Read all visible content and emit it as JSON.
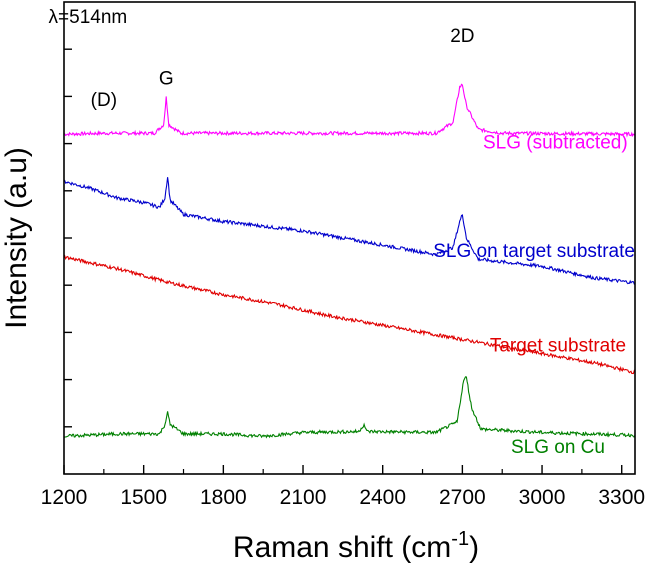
{
  "chart_data": {
    "type": "line",
    "title": "",
    "xlabel": "Raman shift (cm",
    "xlabel_sup": "-1",
    "xlabel_end": ")",
    "ylabel": "Intensity (a.u)",
    "xlim": [
      1200,
      3350
    ],
    "ylim": [
      0,
      10
    ],
    "xticks": [
      1200,
      1500,
      1800,
      2100,
      2400,
      2700,
      3000,
      3300
    ],
    "yticks": [
      1,
      2,
      3,
      4,
      5,
      6,
      7,
      8,
      9
    ],
    "annotations": [
      {
        "text": "λ=514nm",
        "x": 1290,
        "y": 9.55
      },
      {
        "text": "2D",
        "x": 2700,
        "y": 9.15
      },
      {
        "text": "G",
        "x": 1585,
        "y": 8.25
      },
      {
        "text": "(D)",
        "x": 1350,
        "y": 7.8
      }
    ],
    "series": [
      {
        "name": "SLG (subtracted)",
        "color": "#ff00ff",
        "label_x": 3050,
        "label_y": 6.9,
        "points": [
          [
            1200,
            7.2
          ],
          [
            1350,
            7.22
          ],
          [
            1540,
            7.22
          ],
          [
            1575,
            7.4
          ],
          [
            1585,
            7.98
          ],
          [
            1595,
            7.4
          ],
          [
            1640,
            7.22
          ],
          [
            2600,
            7.22
          ],
          [
            2665,
            7.45
          ],
          [
            2690,
            8.2
          ],
          [
            2700,
            8.25
          ],
          [
            2715,
            7.8
          ],
          [
            2760,
            7.3
          ],
          [
            2850,
            7.22
          ],
          [
            3350,
            7.2
          ]
        ]
      },
      {
        "name": "SLG on target substrate",
        "color": "#0000cc",
        "label_x": 2970,
        "label_y": 4.6,
        "points": [
          [
            1200,
            6.2
          ],
          [
            1300,
            6.05
          ],
          [
            1400,
            5.85
          ],
          [
            1500,
            5.75
          ],
          [
            1560,
            5.65
          ],
          [
            1580,
            5.85
          ],
          [
            1590,
            6.3
          ],
          [
            1600,
            5.8
          ],
          [
            1650,
            5.5
          ],
          [
            1800,
            5.35
          ],
          [
            2100,
            5.15
          ],
          [
            2400,
            4.85
          ],
          [
            2600,
            4.65
          ],
          [
            2665,
            4.8
          ],
          [
            2690,
            5.35
          ],
          [
            2700,
            5.5
          ],
          [
            2715,
            5.0
          ],
          [
            2760,
            4.55
          ],
          [
            3000,
            4.4
          ],
          [
            3200,
            4.15
          ],
          [
            3350,
            4.05
          ]
        ]
      },
      {
        "name": "Target substrate",
        "color": "#e00000",
        "label_x": 3060,
        "label_y": 2.6,
        "points": [
          [
            1200,
            4.6
          ],
          [
            1400,
            4.35
          ],
          [
            1600,
            4.05
          ],
          [
            1800,
            3.8
          ],
          [
            2000,
            3.6
          ],
          [
            2200,
            3.35
          ],
          [
            2400,
            3.15
          ],
          [
            2600,
            2.95
          ],
          [
            2800,
            2.75
          ],
          [
            3000,
            2.55
          ],
          [
            3200,
            2.35
          ],
          [
            3350,
            2.15
          ]
        ]
      },
      {
        "name": "SLG on Cu",
        "color": "#008000",
        "label_x": 3060,
        "label_y": 0.45,
        "points": [
          [
            1200,
            0.8
          ],
          [
            1400,
            0.85
          ],
          [
            1560,
            0.85
          ],
          [
            1580,
            1.05
          ],
          [
            1590,
            1.3
          ],
          [
            1600,
            1.05
          ],
          [
            1650,
            0.85
          ],
          [
            1800,
            0.85
          ],
          [
            1950,
            0.8
          ],
          [
            2100,
            0.88
          ],
          [
            2310,
            0.9
          ],
          [
            2330,
            1.05
          ],
          [
            2340,
            0.9
          ],
          [
            2600,
            0.88
          ],
          [
            2680,
            1.1
          ],
          [
            2705,
            2.0
          ],
          [
            2715,
            2.05
          ],
          [
            2735,
            1.4
          ],
          [
            2770,
            0.95
          ],
          [
            3000,
            0.88
          ],
          [
            3350,
            0.82
          ]
        ]
      }
    ]
  }
}
